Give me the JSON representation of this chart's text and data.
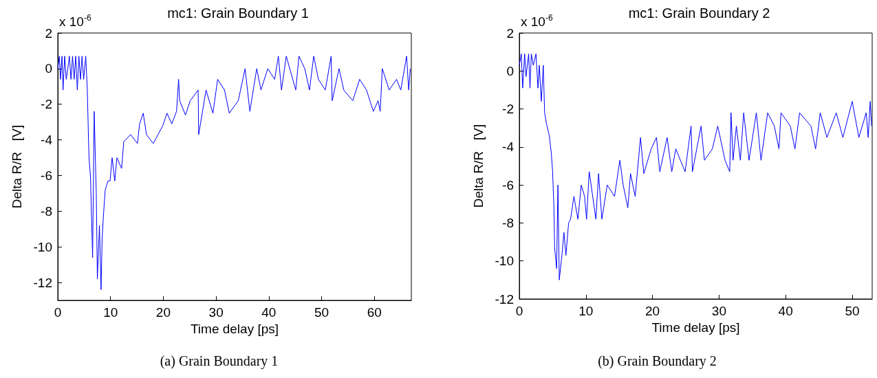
{
  "chart_data": [
    {
      "type": "line",
      "title": "mc1: Grain Boundary 1",
      "xlabel": "Time delay [ps]",
      "ylabel": "Delta R/R   [V]",
      "annotations": [
        "x 10$^{-6}$",
        "(a) Grain Boundary 1"
      ],
      "xlim": [
        0,
        67
      ],
      "xticks": [
        0,
        10,
        20,
        30,
        40,
        50,
        60
      ],
      "ylim": [
        -13,
        2
      ],
      "yticks": [
        -12,
        -10,
        -8,
        -6,
        -4,
        -2,
        0,
        2
      ],
      "grid": false,
      "marker": "none",
      "line_style": "solid",
      "series": [
        {
          "color": "#0000ff",
          "x": [
            0,
            0.3,
            0.5,
            0.8,
            1.0,
            1.3,
            1.6,
            1.9,
            2.2,
            2.5,
            2.8,
            3.1,
            3.4,
            3.7,
            4.0,
            4.3,
            4.6,
            4.9,
            5.3,
            5.6,
            5.9,
            6.2,
            6.6,
            6.9,
            7.3,
            7.5,
            7.9,
            8.2,
            8.4,
            8.6,
            8.8,
            9.0,
            9.5,
            9.9,
            10.3,
            10.8,
            11.2,
            12.1,
            12.5,
            13.8,
            15.1,
            15.5,
            16.2,
            16.8,
            18.1,
            19.9,
            20.7,
            21.6,
            22.5,
            22.9,
            23.1,
            24.2,
            25.1,
            26.6,
            26.7,
            28.1,
            29.4,
            30.3,
            31.6,
            32.5,
            34.2,
            35.5,
            36.4,
            37.7,
            38.5,
            39.8,
            41.1,
            41.8,
            42.4,
            43.3,
            45.1,
            45.7,
            46.8,
            47.7,
            48.5,
            49.4,
            50.7,
            51.8,
            52.0,
            53.3,
            54.2,
            55.9,
            57.2,
            58.5,
            59.8,
            60.7,
            61.1,
            61.5,
            62.8,
            64.2,
            65.0,
            66.1,
            66.5,
            66.8
          ],
          "values": [
            0,
            0.7,
            -0.6,
            0.7,
            -1.2,
            0.7,
            -0.6,
            0,
            0.7,
            -0.6,
            0.7,
            -0.6,
            0.7,
            -1.2,
            0.7,
            -0.6,
            0.7,
            -0.6,
            0.7,
            -1.2,
            -4.9,
            -6.1,
            -10.6,
            -2.4,
            -7.1,
            -11.8,
            -8.8,
            -12.4,
            -9.6,
            -8.5,
            -7.6,
            -6.8,
            -6.3,
            -6.3,
            -5.0,
            -6.3,
            -5.0,
            -5.6,
            -4.1,
            -3.7,
            -4.2,
            -3.1,
            -2.5,
            -3.7,
            -4.2,
            -3.2,
            -2.5,
            -3.1,
            -2.4,
            -0.6,
            -1.8,
            -2.6,
            -1.8,
            -1.2,
            -3.7,
            -1.2,
            -2.5,
            -0.6,
            -1.2,
            -2.5,
            -1.8,
            0,
            -2.4,
            0,
            -1.2,
            0,
            -0.6,
            0.7,
            -1.2,
            0.7,
            -1.2,
            0.7,
            0,
            -1.2,
            0.7,
            -0.6,
            -1.2,
            0.7,
            -1.8,
            0,
            -1.2,
            -1.8,
            -0.6,
            -1.2,
            -2.4,
            -1.8,
            -2.4,
            0,
            -1.2,
            -0.6,
            -1.2,
            0.7,
            -1.2,
            0
          ]
        }
      ]
    },
    {
      "type": "line",
      "title": "mc1: Grain Boundary 2",
      "xlabel": "Time delay [ps]",
      "ylabel": "Delta R/R   [V]",
      "annotations": [
        "x 10$^{-6}$",
        "(b) Grain Boundary 2"
      ],
      "xlim": [
        0,
        53
      ],
      "xticks": [
        0,
        10,
        20,
        30,
        40,
        50
      ],
      "ylim": [
        -12,
        2
      ],
      "yticks": [
        -12,
        -10,
        -8,
        -6,
        -4,
        -2,
        0,
        2
      ],
      "grid": false,
      "marker": "none",
      "line_style": "solid",
      "series": [
        {
          "color": "#0000ff",
          "x": [
            0,
            0.3,
            0.5,
            0.8,
            1.0,
            1.4,
            1.6,
            1.8,
            2.1,
            2.5,
            2.8,
            3.0,
            3.3,
            3.6,
            3.8,
            4.1,
            4.5,
            4.8,
            5.0,
            5.2,
            5.3,
            5.6,
            5.8,
            6.0,
            6.4,
            6.7,
            7.0,
            7.4,
            7.7,
            8.2,
            8.8,
            9.3,
            9.8,
            10.1,
            10.5,
            11.5,
            11.9,
            12.4,
            13.2,
            14.3,
            15.1,
            15.6,
            16.3,
            16.7,
            17.4,
            18.2,
            18.7,
            19.8,
            20.6,
            21.1,
            22.2,
            22.9,
            23.5,
            24.9,
            25.8,
            26.0,
            27.3,
            27.8,
            29.0,
            29.8,
            30.9,
            31.6,
            31.8,
            32.1,
            32.6,
            33.2,
            33.7,
            34.5,
            35.6,
            36.3,
            37.3,
            38.3,
            39.0,
            39.3,
            40.7,
            41.4,
            42.1,
            43.8,
            44.5,
            45.2,
            46.2,
            47.6,
            48.6,
            50.0,
            51.0,
            52.1,
            52.4,
            52.7,
            52.9
          ],
          "values": [
            0.3,
            0.9,
            -0.9,
            0.9,
            -0.3,
            0.9,
            -0.9,
            0.9,
            0.3,
            0.9,
            -0.9,
            0.3,
            -1.6,
            0.3,
            -2.2,
            -2.8,
            -3.4,
            -4.3,
            -5.3,
            -7.2,
            -9.3,
            -10.4,
            -6.0,
            -11.0,
            -9.7,
            -8.5,
            -9.7,
            -8.0,
            -7.8,
            -6.6,
            -7.8,
            -6.0,
            -6.6,
            -7.8,
            -5.3,
            -7.8,
            -5.4,
            -7.8,
            -6.0,
            -6.6,
            -4.7,
            -6.0,
            -7.2,
            -5.4,
            -6.6,
            -3.5,
            -5.4,
            -4.1,
            -3.5,
            -5.3,
            -3.5,
            -5.3,
            -4.1,
            -5.3,
            -2.9,
            -5.3,
            -2.9,
            -4.7,
            -4.1,
            -2.9,
            -4.7,
            -5.3,
            -2.2,
            -4.7,
            -2.9,
            -4.7,
            -2.2,
            -4.7,
            -2.2,
            -4.7,
            -2.2,
            -2.9,
            -4.1,
            -2.2,
            -2.9,
            -4.1,
            -2.2,
            -2.9,
            -4.1,
            -2.2,
            -3.5,
            -2.2,
            -3.5,
            -1.6,
            -3.5,
            -2.2,
            -3.5,
            -1.6,
            -2.9
          ]
        }
      ]
    }
  ]
}
